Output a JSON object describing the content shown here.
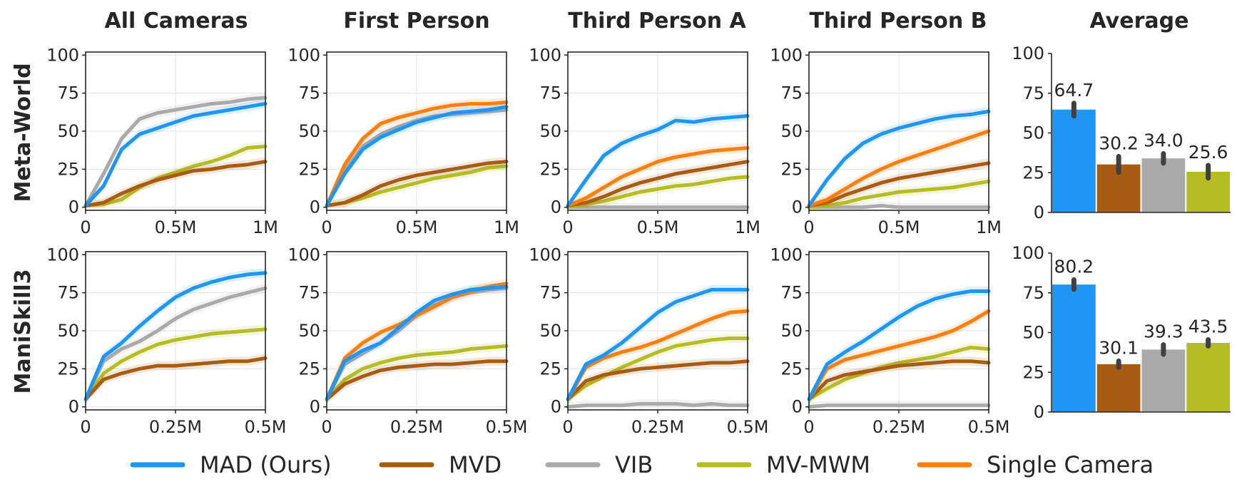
{
  "column_titles": [
    "All Cameras",
    "First Person",
    "Third Person A",
    "Third Person B",
    "Average"
  ],
  "row_titles": [
    "Meta-World",
    "ManiSkill3"
  ],
  "legend": [
    {
      "label": "MAD (Ours)",
      "color": "#1f96f3"
    },
    {
      "label": "MVD",
      "color": "#a85c12"
    },
    {
      "label": "VIB",
      "color": "#aaaaaa"
    },
    {
      "label": "MV-MWM",
      "color": "#b5bd24"
    },
    {
      "label": "Single Camera",
      "color": "#ff7f0e"
    }
  ],
  "chart_data": [
    {
      "type": "line",
      "row": "Meta-World",
      "title": "All Cameras",
      "x": [
        0,
        0.1,
        0.2,
        0.3,
        0.4,
        0.5,
        0.6,
        0.7,
        0.8,
        0.9,
        1.0
      ],
      "xticks": [
        "0",
        "0.5M",
        "1M"
      ],
      "xlim": [
        0,
        1
      ],
      "ylim": [
        0,
        100
      ],
      "yticks": [
        0,
        25,
        50,
        75,
        100
      ],
      "series": [
        {
          "name": "MAD (Ours)",
          "values": [
            1,
            14,
            38,
            48,
            52,
            56,
            60,
            62,
            64,
            66,
            68
          ]
        },
        {
          "name": "MVD",
          "values": [
            1,
            3,
            9,
            14,
            18,
            21,
            24,
            25,
            27,
            28,
            30
          ]
        },
        {
          "name": "VIB",
          "values": [
            1,
            22,
            45,
            58,
            62,
            64,
            66,
            68,
            69,
            71,
            72
          ]
        },
        {
          "name": "MV-MWM",
          "values": [
            1,
            2,
            5,
            13,
            19,
            23,
            27,
            30,
            34,
            39,
            40
          ]
        }
      ]
    },
    {
      "type": "line",
      "row": "Meta-World",
      "title": "First Person",
      "x": [
        0,
        0.1,
        0.2,
        0.3,
        0.4,
        0.5,
        0.6,
        0.7,
        0.8,
        0.9,
        1.0
      ],
      "xticks": [
        "0",
        "0.5M",
        "1M"
      ],
      "xlim": [
        0,
        1
      ],
      "ylim": [
        0,
        100
      ],
      "yticks": [
        0,
        25,
        50,
        75,
        100
      ],
      "series": [
        {
          "name": "MAD (Ours)",
          "values": [
            1,
            22,
            38,
            46,
            51,
            56,
            59,
            62,
            63,
            64,
            66
          ]
        },
        {
          "name": "MVD",
          "values": [
            1,
            3,
            8,
            14,
            18,
            21,
            23,
            25,
            27,
            29,
            30
          ]
        },
        {
          "name": "VIB",
          "values": [
            1,
            24,
            40,
            48,
            53,
            57,
            60,
            61,
            62,
            63,
            64
          ]
        },
        {
          "name": "MV-MWM",
          "values": [
            1,
            3,
            6,
            10,
            13,
            16,
            19,
            21,
            23,
            26,
            27
          ]
        },
        {
          "name": "Single Camera",
          "values": [
            1,
            28,
            45,
            55,
            59,
            62,
            65,
            67,
            68,
            68,
            69
          ]
        }
      ]
    },
    {
      "type": "line",
      "row": "Meta-World",
      "title": "Third Person A",
      "x": [
        0,
        0.1,
        0.2,
        0.3,
        0.4,
        0.5,
        0.6,
        0.7,
        0.8,
        0.9,
        1.0
      ],
      "xticks": [
        "0",
        "0.5M",
        "1M"
      ],
      "xlim": [
        0,
        1
      ],
      "ylim": [
        0,
        100
      ],
      "yticks": [
        0,
        25,
        50,
        75,
        100
      ],
      "series": [
        {
          "name": "MAD (Ours)",
          "values": [
            1,
            18,
            34,
            42,
            47,
            51,
            57,
            56,
            58,
            59,
            60
          ]
        },
        {
          "name": "MVD",
          "values": [
            1,
            3,
            7,
            12,
            16,
            19,
            22,
            24,
            26,
            28,
            30
          ]
        },
        {
          "name": "VIB",
          "values": [
            0,
            0,
            0,
            0,
            0,
            0,
            0,
            0,
            0,
            0,
            0
          ]
        },
        {
          "name": "MV-MWM",
          "values": [
            0,
            2,
            4,
            7,
            10,
            12,
            14,
            15,
            17,
            19,
            20
          ]
        },
        {
          "name": "Single Camera",
          "values": [
            1,
            6,
            13,
            20,
            25,
            30,
            33,
            35,
            37,
            38,
            39
          ]
        }
      ]
    },
    {
      "type": "line",
      "row": "Meta-World",
      "title": "Third Person B",
      "x": [
        0,
        0.1,
        0.2,
        0.3,
        0.4,
        0.5,
        0.6,
        0.7,
        0.8,
        0.9,
        1.0
      ],
      "xticks": [
        "0",
        "0.5M",
        "1M"
      ],
      "xlim": [
        0,
        1
      ],
      "ylim": [
        0,
        100
      ],
      "yticks": [
        0,
        25,
        50,
        75,
        100
      ],
      "series": [
        {
          "name": "MAD (Ours)",
          "values": [
            1,
            18,
            32,
            42,
            48,
            52,
            55,
            58,
            60,
            61,
            63
          ]
        },
        {
          "name": "MVD",
          "values": [
            1,
            3,
            8,
            12,
            16,
            19,
            21,
            23,
            25,
            27,
            29
          ]
        },
        {
          "name": "VIB",
          "values": [
            0,
            0,
            0,
            0,
            1,
            0,
            0,
            0,
            0,
            0,
            0
          ]
        },
        {
          "name": "MV-MWM",
          "values": [
            0,
            1,
            3,
            6,
            8,
            10,
            11,
            12,
            13,
            15,
            17
          ]
        },
        {
          "name": "Single Camera",
          "values": [
            1,
            5,
            12,
            19,
            25,
            30,
            34,
            38,
            42,
            46,
            50
          ]
        }
      ]
    },
    {
      "type": "bar",
      "row": "Meta-World",
      "title": "Average",
      "categories": [
        "MAD (Ours)",
        "MVD",
        "VIB",
        "MV-MWM"
      ],
      "values": [
        64.7,
        30.2,
        34.0,
        25.6
      ],
      "labels": [
        "64.7",
        "30.2",
        "34.0",
        "25.6"
      ],
      "error": [
        4,
        5,
        3,
        4
      ],
      "ylim": [
        0,
        100
      ],
      "yticks": [
        0,
        25,
        50,
        75,
        100
      ]
    },
    {
      "type": "line",
      "row": "ManiSkill3",
      "title": "All Cameras",
      "x": [
        0,
        0.05,
        0.1,
        0.15,
        0.2,
        0.25,
        0.3,
        0.35,
        0.4,
        0.45,
        0.5
      ],
      "xticks": [
        "0",
        "0.25M",
        "0.5M"
      ],
      "xlim": [
        0,
        0.5
      ],
      "ylim": [
        0,
        100
      ],
      "yticks": [
        0,
        25,
        50,
        75,
        100
      ],
      "series": [
        {
          "name": "MAD (Ours)",
          "values": [
            5,
            33,
            42,
            53,
            63,
            72,
            78,
            82,
            85,
            87,
            88
          ]
        },
        {
          "name": "MVD",
          "values": [
            5,
            18,
            22,
            25,
            27,
            27,
            28,
            29,
            30,
            30,
            32
          ]
        },
        {
          "name": "VIB",
          "values": [
            5,
            30,
            38,
            43,
            50,
            58,
            64,
            68,
            72,
            75,
            78
          ]
        },
        {
          "name": "MV-MWM",
          "values": [
            5,
            22,
            30,
            36,
            41,
            44,
            46,
            48,
            49,
            50,
            51
          ]
        }
      ]
    },
    {
      "type": "line",
      "row": "ManiSkill3",
      "title": "First Person",
      "x": [
        0,
        0.05,
        0.1,
        0.15,
        0.2,
        0.25,
        0.3,
        0.35,
        0.4,
        0.45,
        0.5
      ],
      "xticks": [
        "0",
        "0.25M",
        "0.5M"
      ],
      "xlim": [
        0,
        0.5
      ],
      "ylim": [
        0,
        100
      ],
      "yticks": [
        0,
        25,
        50,
        75,
        100
      ],
      "series": [
        {
          "name": "MAD (Ours)",
          "values": [
            5,
            30,
            37,
            42,
            52,
            62,
            70,
            74,
            77,
            78,
            79
          ]
        },
        {
          "name": "MVD",
          "values": [
            5,
            15,
            20,
            24,
            26,
            27,
            28,
            28,
            29,
            30,
            30
          ]
        },
        {
          "name": "VIB",
          "values": [
            5,
            28,
            35,
            42,
            50,
            60,
            67,
            72,
            75,
            77,
            78
          ]
        },
        {
          "name": "MV-MWM",
          "values": [
            5,
            18,
            25,
            29,
            32,
            34,
            35,
            36,
            38,
            39,
            40
          ]
        },
        {
          "name": "Single Camera",
          "values": [
            5,
            32,
            42,
            49,
            54,
            60,
            66,
            72,
            76,
            79,
            81
          ]
        }
      ]
    },
    {
      "type": "line",
      "row": "ManiSkill3",
      "title": "Third Person A",
      "x": [
        0,
        0.05,
        0.1,
        0.15,
        0.2,
        0.25,
        0.3,
        0.35,
        0.4,
        0.45,
        0.5
      ],
      "xticks": [
        "0",
        "0.25M",
        "0.5M"
      ],
      "xlim": [
        0,
        0.5
      ],
      "ylim": [
        0,
        100
      ],
      "yticks": [
        0,
        25,
        50,
        75,
        100
      ],
      "series": [
        {
          "name": "MAD (Ours)",
          "values": [
            5,
            28,
            34,
            42,
            52,
            62,
            69,
            73,
            77,
            77,
            77
          ]
        },
        {
          "name": "MVD",
          "values": [
            5,
            17,
            21,
            23,
            25,
            26,
            27,
            28,
            29,
            29,
            30
          ]
        },
        {
          "name": "VIB",
          "values": [
            0,
            1,
            1,
            1,
            2,
            2,
            2,
            1,
            2,
            1,
            1
          ]
        },
        {
          "name": "MV-MWM",
          "values": [
            5,
            14,
            20,
            26,
            31,
            36,
            40,
            42,
            44,
            45,
            45
          ]
        },
        {
          "name": "Single Camera",
          "values": [
            5,
            26,
            32,
            36,
            39,
            43,
            48,
            53,
            58,
            62,
            63
          ]
        }
      ]
    },
    {
      "type": "line",
      "row": "ManiSkill3",
      "title": "Third Person B",
      "x": [
        0,
        0.05,
        0.1,
        0.15,
        0.2,
        0.25,
        0.3,
        0.35,
        0.4,
        0.45,
        0.5
      ],
      "xticks": [
        "0",
        "0.25M",
        "0.5M"
      ],
      "xlim": [
        0,
        0.5
      ],
      "ylim": [
        0,
        100
      ],
      "yticks": [
        0,
        25,
        50,
        75,
        100
      ],
      "series": [
        {
          "name": "MAD (Ours)",
          "values": [
            5,
            28,
            36,
            43,
            51,
            59,
            66,
            71,
            74,
            76,
            76
          ]
        },
        {
          "name": "MVD",
          "values": [
            5,
            17,
            21,
            23,
            25,
            27,
            28,
            29,
            30,
            30,
            29
          ]
        },
        {
          "name": "VIB",
          "values": [
            0,
            1,
            1,
            1,
            1,
            1,
            1,
            1,
            1,
            1,
            1
          ]
        },
        {
          "name": "MV-MWM",
          "values": [
            5,
            12,
            18,
            22,
            26,
            29,
            31,
            33,
            36,
            39,
            38
          ]
        },
        {
          "name": "Single Camera",
          "values": [
            5,
            25,
            31,
            34,
            37,
            40,
            43,
            46,
            50,
            56,
            63
          ]
        }
      ]
    },
    {
      "type": "bar",
      "row": "ManiSkill3",
      "title": "Average",
      "categories": [
        "MAD (Ours)",
        "MVD",
        "VIB",
        "MV-MWM"
      ],
      "values": [
        80.2,
        30.1,
        39.3,
        43.5
      ],
      "labels": [
        "80.2",
        "30.1",
        "39.3",
        "43.5"
      ],
      "error": [
        3,
        2,
        3,
        2
      ],
      "ylim": [
        0,
        100
      ],
      "yticks": [
        0,
        25,
        50,
        75,
        100
      ]
    }
  ]
}
